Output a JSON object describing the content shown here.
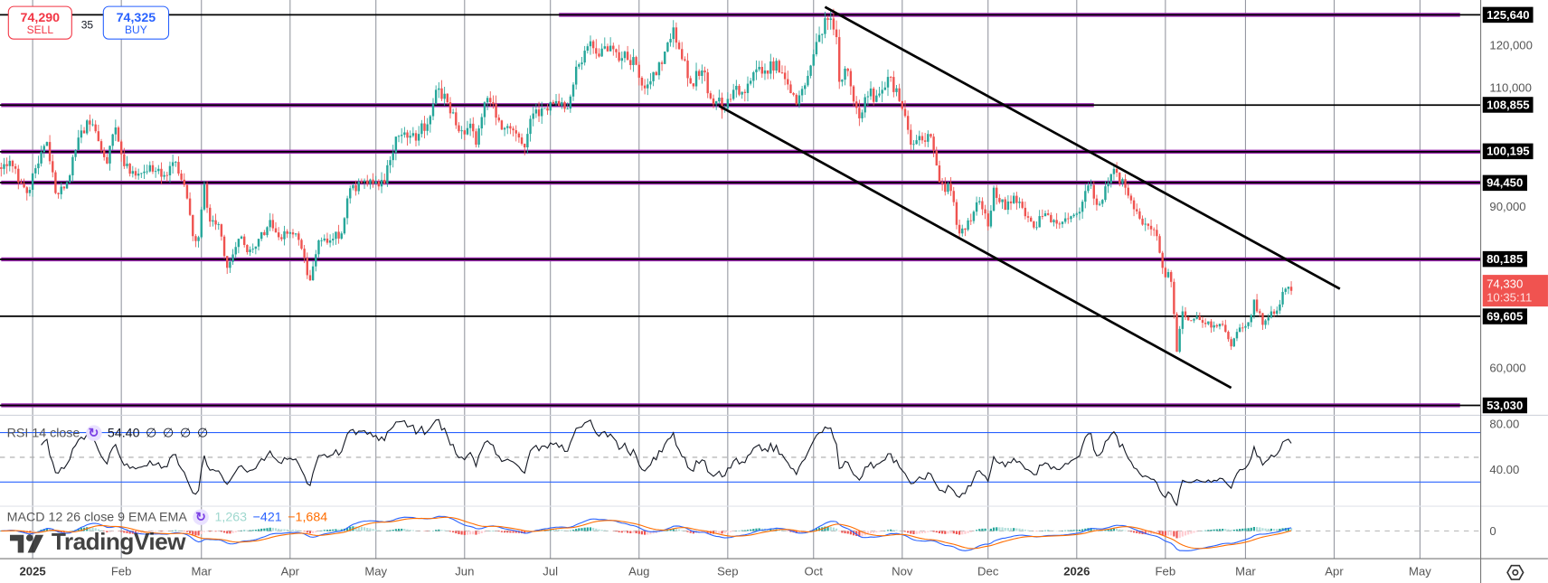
{
  "colors": {
    "up": "#26a69a",
    "down": "#ef5350",
    "level_purple": "#9c27b0",
    "level_black": "#000000",
    "rsi": "#131722",
    "rsi_band": "#2962ff",
    "macd": "#2962ff",
    "signal": "#ff6d00",
    "hist_up": "#26a69a",
    "hist_up_weak": "#b2dfdb",
    "hist_down": "#ef5350",
    "hist_down_weak": "#ffcdd2",
    "last_price": "#f05350"
  },
  "trade_panel": {
    "sell_price": "74,290",
    "sell_label": "SELL",
    "spread": "35",
    "buy_price": "74,325",
    "buy_label": "BUY"
  },
  "price_axis": {
    "ticks": [
      {
        "value": 120000,
        "label": "120,000"
      },
      {
        "value": 110000,
        "label": "110,000"
      },
      {
        "value": 90000,
        "label": "90,000"
      },
      {
        "value": 60000,
        "label": "60,000"
      }
    ],
    "last_price": "74,330",
    "countdown": "10:35:11"
  },
  "levels": [
    {
      "price": 125640,
      "label": "125,640",
      "purple_from": "2025-07-04",
      "purple_to": "2026-05-15"
    },
    {
      "price": 108855,
      "label": "108,855",
      "purple_from": "2024-12-21",
      "purple_to": "2026-01-07"
    },
    {
      "price": 100195,
      "label": "100,195",
      "purple_from": "2024-12-21",
      "purple_to": "2026-06-30"
    },
    {
      "price": 94450,
      "label": "94,450",
      "purple_from": "2024-12-21",
      "purple_to": "2026-06-30"
    },
    {
      "price": 80185,
      "label": "80,185",
      "purple_from": "2024-12-21",
      "purple_to": "2026-06-30"
    },
    {
      "price": 69605,
      "label": "69,605"
    },
    {
      "price": 53030,
      "label": "53,030",
      "purple_from": "2024-12-21",
      "purple_to": "2026-05-15"
    }
  ],
  "rsi": {
    "title": "RSI 14 close",
    "value": "54.40",
    "extras": [
      "∅",
      "∅",
      "∅",
      "∅"
    ],
    "axis": [
      {
        "value": 80,
        "label": "80.00"
      },
      {
        "value": 40,
        "label": "40.00"
      }
    ],
    "bands": [
      70,
      50,
      30
    ]
  },
  "macd": {
    "title": "MACD 12 26 close 9 EMA EMA",
    "histogram": "1,263",
    "macd": "−421",
    "signal": "−1,684",
    "axis": [
      {
        "value": 0,
        "label": "0"
      }
    ]
  },
  "time_axis": [
    {
      "date": "2025-01-01",
      "label": "2025",
      "year": true
    },
    {
      "date": "2025-02-01",
      "label": "Feb"
    },
    {
      "date": "2025-03-01",
      "label": "Mar"
    },
    {
      "date": "2025-04-01",
      "label": "Apr"
    },
    {
      "date": "2025-05-01",
      "label": "May"
    },
    {
      "date": "2025-06-01",
      "label": "Jun"
    },
    {
      "date": "2025-07-01",
      "label": "Jul"
    },
    {
      "date": "2025-08-01",
      "label": "Aug"
    },
    {
      "date": "2025-09-01",
      "label": "Sep"
    },
    {
      "date": "2025-10-01",
      "label": "Oct"
    },
    {
      "date": "2025-11-01",
      "label": "Nov"
    },
    {
      "date": "2025-12-01",
      "label": "Dec"
    },
    {
      "date": "2026-01-01",
      "label": "2026",
      "year": true
    },
    {
      "date": "2026-02-01",
      "label": "Feb"
    },
    {
      "date": "2026-03-01",
      "label": "Mar"
    },
    {
      "date": "2026-04-01",
      "label": "Apr"
    },
    {
      "date": "2026-05-01",
      "label": "May"
    }
  ],
  "watermark": "TradingView",
  "chart_data": {
    "type": "candlestick",
    "interval": "daily",
    "ylim": [
      51190,
      128400
    ],
    "closes": [
      [
        "2024-12-21",
        97000
      ],
      [
        "2024-12-24",
        98500
      ],
      [
        "2024-12-27",
        94500
      ],
      [
        "2024-12-30",
        92500
      ],
      [
        "2025-01-03",
        98000
      ],
      [
        "2025-01-06",
        102000
      ],
      [
        "2025-01-09",
        92500
      ],
      [
        "2025-01-13",
        94500
      ],
      [
        "2025-01-16",
        100500
      ],
      [
        "2025-01-20",
        106000
      ],
      [
        "2025-01-23",
        104000
      ],
      [
        "2025-01-27",
        98000
      ],
      [
        "2025-01-30",
        104700
      ],
      [
        "2025-02-02",
        97500
      ],
      [
        "2025-02-05",
        96600
      ],
      [
        "2025-02-09",
        96500
      ],
      [
        "2025-02-13",
        96600
      ],
      [
        "2025-02-17",
        95800
      ],
      [
        "2025-02-20",
        98300
      ],
      [
        "2025-02-24",
        91500
      ],
      [
        "2025-02-26",
        84500
      ],
      [
        "2025-02-28",
        84300
      ],
      [
        "2025-03-02",
        94200
      ],
      [
        "2025-03-04",
        87200
      ],
      [
        "2025-03-07",
        86700
      ],
      [
        "2025-03-10",
        78600
      ],
      [
        "2025-03-14",
        84000
      ],
      [
        "2025-03-18",
        82000
      ],
      [
        "2025-03-21",
        84000
      ],
      [
        "2025-03-25",
        87500
      ],
      [
        "2025-03-28",
        84300
      ],
      [
        "2025-04-01",
        85200
      ],
      [
        "2025-04-04",
        83800
      ],
      [
        "2025-04-08",
        76300
      ],
      [
        "2025-04-11",
        83700
      ],
      [
        "2025-04-15",
        83700
      ],
      [
        "2025-04-19",
        85000
      ],
      [
        "2025-04-22",
        93400
      ],
      [
        "2025-04-26",
        94600
      ],
      [
        "2025-04-30",
        94200
      ],
      [
        "2025-05-04",
        94300
      ],
      [
        "2025-05-08",
        103000
      ],
      [
        "2025-05-12",
        102800
      ],
      [
        "2025-05-16",
        103500
      ],
      [
        "2025-05-20",
        106800
      ],
      [
        "2025-05-22",
        111700
      ],
      [
        "2025-05-26",
        109400
      ],
      [
        "2025-05-30",
        104000
      ],
      [
        "2025-06-03",
        105400
      ],
      [
        "2025-06-05",
        101500
      ],
      [
        "2025-06-09",
        110200
      ],
      [
        "2025-06-13",
        106000
      ],
      [
        "2025-06-17",
        104500
      ],
      [
        "2025-06-22",
        101000
      ],
      [
        "2025-06-25",
        107300
      ],
      [
        "2025-06-29",
        108300
      ],
      [
        "2025-07-03",
        109600
      ],
      [
        "2025-07-07",
        108200
      ],
      [
        "2025-07-10",
        116000
      ],
      [
        "2025-07-14",
        119800
      ],
      [
        "2025-07-18",
        117900
      ],
      [
        "2025-07-22",
        119900
      ],
      [
        "2025-07-26",
        117600
      ],
      [
        "2025-07-30",
        117800
      ],
      [
        "2025-08-02",
        112500
      ],
      [
        "2025-08-06",
        115000
      ],
      [
        "2025-08-09",
        116500
      ],
      [
        "2025-08-13",
        123300
      ],
      [
        "2025-08-16",
        117400
      ],
      [
        "2025-08-19",
        112900
      ],
      [
        "2025-08-23",
        115300
      ],
      [
        "2025-08-26",
        110100
      ],
      [
        "2025-08-31",
        108200
      ],
      [
        "2025-09-03",
        111700
      ],
      [
        "2025-09-07",
        111100
      ],
      [
        "2025-09-11",
        115500
      ],
      [
        "2025-09-14",
        115300
      ],
      [
        "2025-09-18",
        117100
      ],
      [
        "2025-09-22",
        112700
      ],
      [
        "2025-09-25",
        109000
      ],
      [
        "2025-09-29",
        114300
      ],
      [
        "2025-10-02",
        120600
      ],
      [
        "2025-10-06",
        124700
      ],
      [
        "2025-10-09",
        121500
      ],
      [
        "2025-10-10",
        113200
      ],
      [
        "2025-10-13",
        115200
      ],
      [
        "2025-10-17",
        106400
      ],
      [
        "2025-10-20",
        110500
      ],
      [
        "2025-10-24",
        111000
      ],
      [
        "2025-10-27",
        114100
      ],
      [
        "2025-10-31",
        109600
      ],
      [
        "2025-11-04",
        101500
      ],
      [
        "2025-11-08",
        102300
      ],
      [
        "2025-11-11",
        103000
      ],
      [
        "2025-11-14",
        94500
      ],
      [
        "2025-11-18",
        92900
      ],
      [
        "2025-11-21",
        85000
      ],
      [
        "2025-11-25",
        87300
      ],
      [
        "2025-11-28",
        91000
      ],
      [
        "2025-12-01",
        86300
      ],
      [
        "2025-12-03",
        93500
      ],
      [
        "2025-12-07",
        89400
      ],
      [
        "2025-12-10",
        92000
      ],
      [
        "2025-12-14",
        88200
      ],
      [
        "2025-12-17",
        86100
      ],
      [
        "2025-12-20",
        88200
      ],
      [
        "2025-12-24",
        87500
      ],
      [
        "2025-12-28",
        87800
      ],
      [
        "2026-01-01",
        88700
      ],
      [
        "2026-01-05",
        93900
      ],
      [
        "2026-01-09",
        90500
      ],
      [
        "2026-01-14",
        97000
      ],
      [
        "2026-01-18",
        93500
      ],
      [
        "2026-01-21",
        89500
      ],
      [
        "2026-01-25",
        86800
      ],
      [
        "2026-01-29",
        84500
      ],
      [
        "2026-01-31",
        78600
      ],
      [
        "2026-02-03",
        76000
      ],
      [
        "2026-02-05",
        63000
      ],
      [
        "2026-02-07",
        70500
      ],
      [
        "2026-02-10",
        68800
      ],
      [
        "2026-02-13",
        68900
      ],
      [
        "2026-02-17",
        67500
      ],
      [
        "2026-02-21",
        68000
      ],
      [
        "2026-02-24",
        64000
      ],
      [
        "2026-02-27",
        67500
      ],
      [
        "2026-03-02",
        68500
      ],
      [
        "2026-03-04",
        72700
      ],
      [
        "2026-03-07",
        68000
      ],
      [
        "2026-03-10",
        70500
      ],
      [
        "2026-03-13",
        71800
      ],
      [
        "2026-03-15",
        74700
      ],
      [
        "2026-03-17",
        74330
      ]
    ],
    "trendlines": [
      {
        "from": [
          "2025-10-05",
          127100
        ],
        "to": [
          "2026-04-03",
          74700
        ]
      },
      {
        "from": [
          "2025-08-29",
          108700
        ],
        "to": [
          "2026-02-24",
          56300
        ]
      }
    ]
  }
}
